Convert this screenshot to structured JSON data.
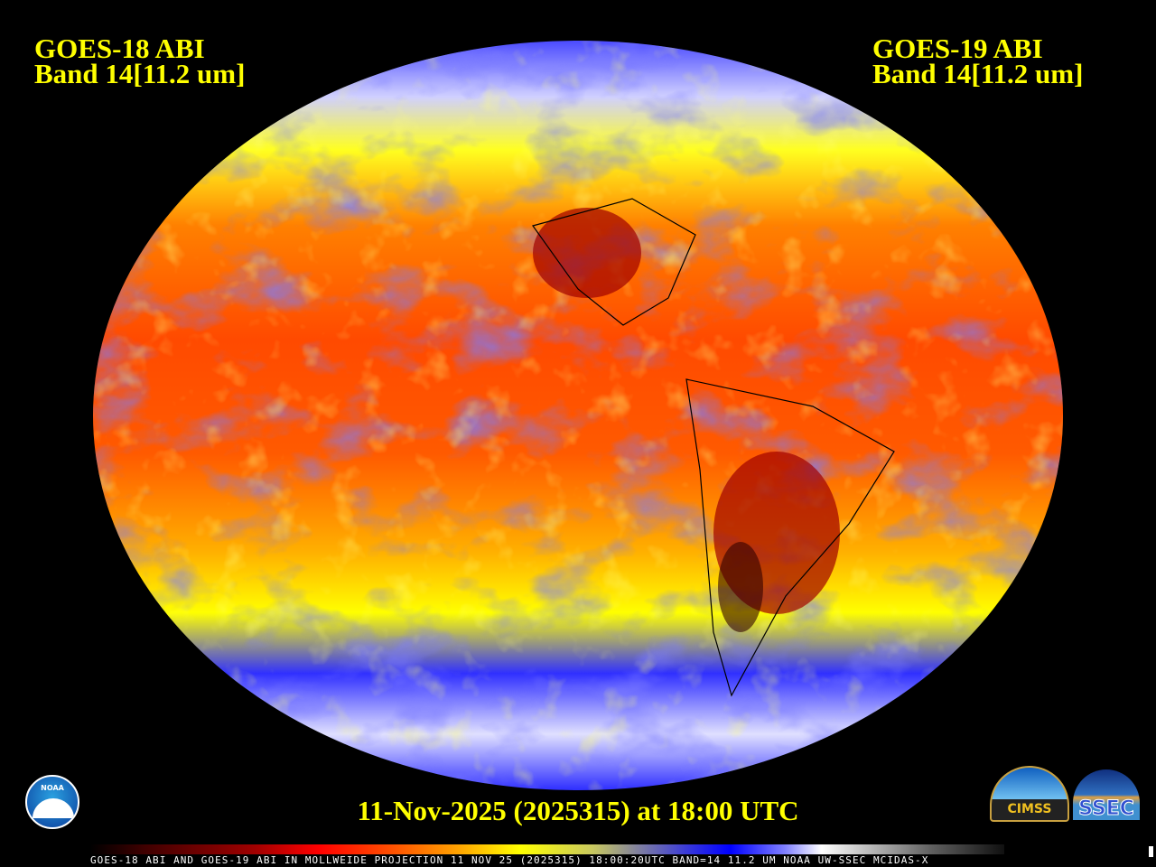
{
  "header": {
    "left": {
      "satellite": "GOES-18 ABI",
      "band": "Band 14[11.2 um]"
    },
    "right": {
      "satellite": "GOES-19 ABI",
      "band": "Band 14[11.2 um]"
    }
  },
  "date_label": "11-Nov-2025 (2025315) at 18:00 UTC",
  "footer": "GOES-18 ABI AND GOES-19 ABI IN MOLLWEIDE PROJECTION 11 NOV 25 (2025315) 18:00:20UTC BAND=14 11.2 UM NOAA UW-SSEC MCIDAS-X",
  "projection": "Mollweide",
  "colorbar_colors": [
    "#000000",
    "#a00000",
    "#ff0000",
    "#ffa000",
    "#ffff00",
    "#8080a0",
    "#0000ff",
    "#ffffff",
    "#606060"
  ],
  "logos": {
    "noaa": "NOAA",
    "cimss": "CIMSS",
    "ssec": "SSEC"
  }
}
